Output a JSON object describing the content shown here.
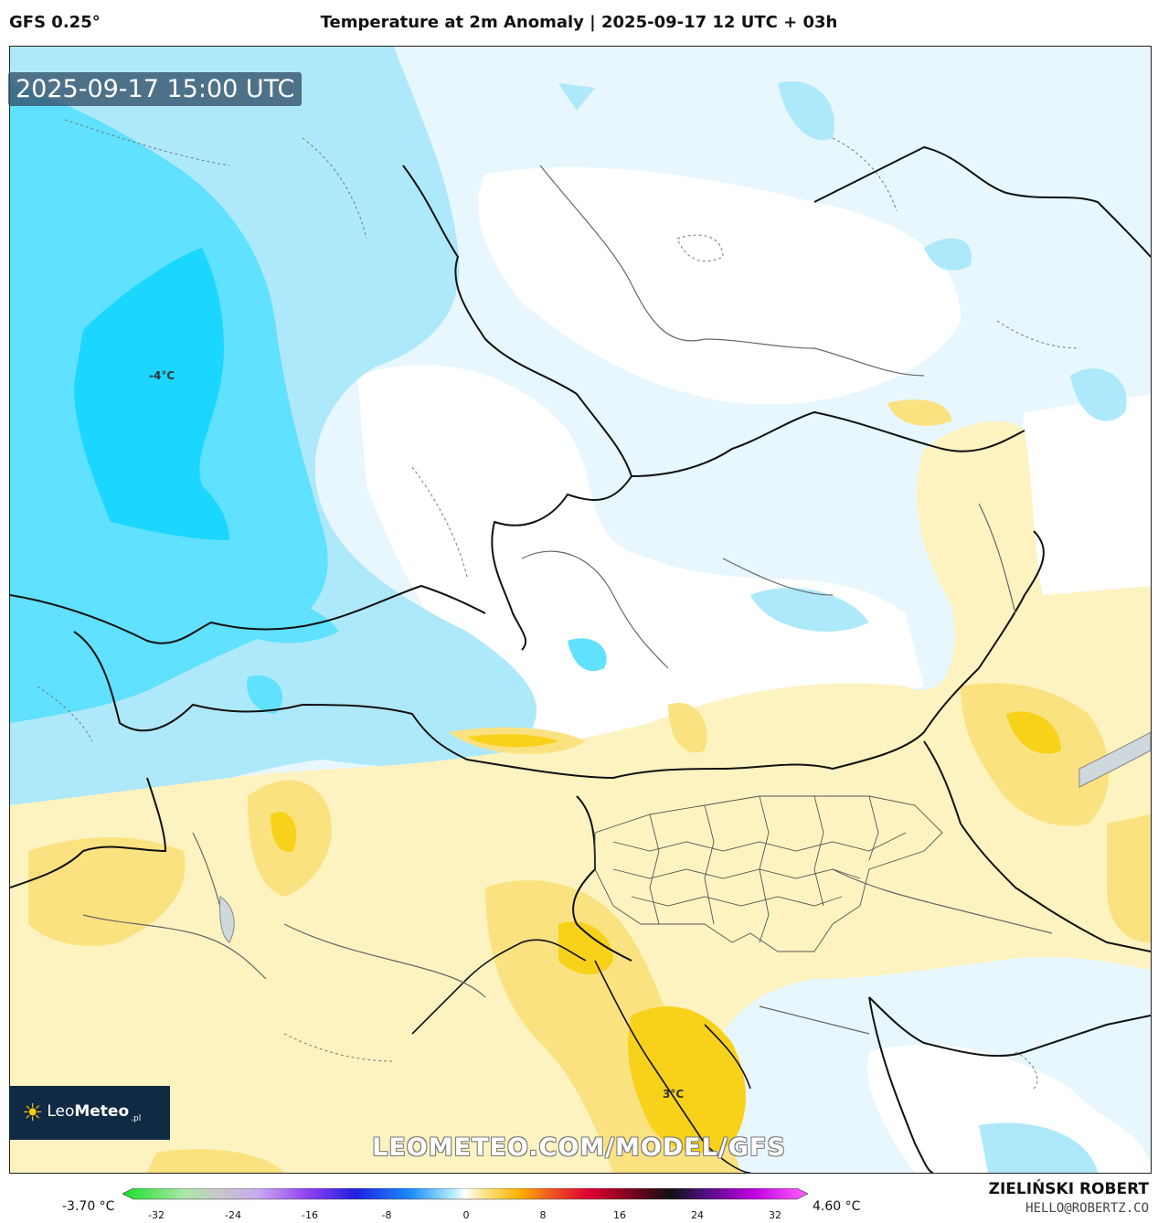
{
  "header": {
    "model": "GFS 0.25°",
    "title": "Temperature at 2m Anomaly | 2025-09-17 12 UTC + 03h"
  },
  "map": {
    "timestamp": "2025-09-17 15:00 UTC",
    "labels": {
      "cold": "-4°C",
      "warm": "3°C"
    },
    "watermark": "LEOMETEO.COM/MODEL/GFS",
    "colors": {
      "cold_deep": "#1bd6ff",
      "cold_mid": "#5fe1ff",
      "cold_light": "#aee9fb",
      "cold_pale": "#e8f7fd",
      "warm_pale": "#fdf3c0",
      "warm_mid": "#fbe281",
      "warm_strong": "#f8d21a"
    }
  },
  "logo": {
    "brand_light": "Leo",
    "brand_bold": "Meteo",
    "tld": ".pl"
  },
  "legend": {
    "min": "-3.70 °C",
    "max": "4.60 °C",
    "ticks": [
      "-32",
      "-24",
      "-16",
      "-8",
      "0",
      "8",
      "16",
      "24",
      "32"
    ]
  },
  "credit": {
    "author": "ZIELIŃSKI ROBERT",
    "email": "HELLO@ROBERTZ.CO"
  }
}
